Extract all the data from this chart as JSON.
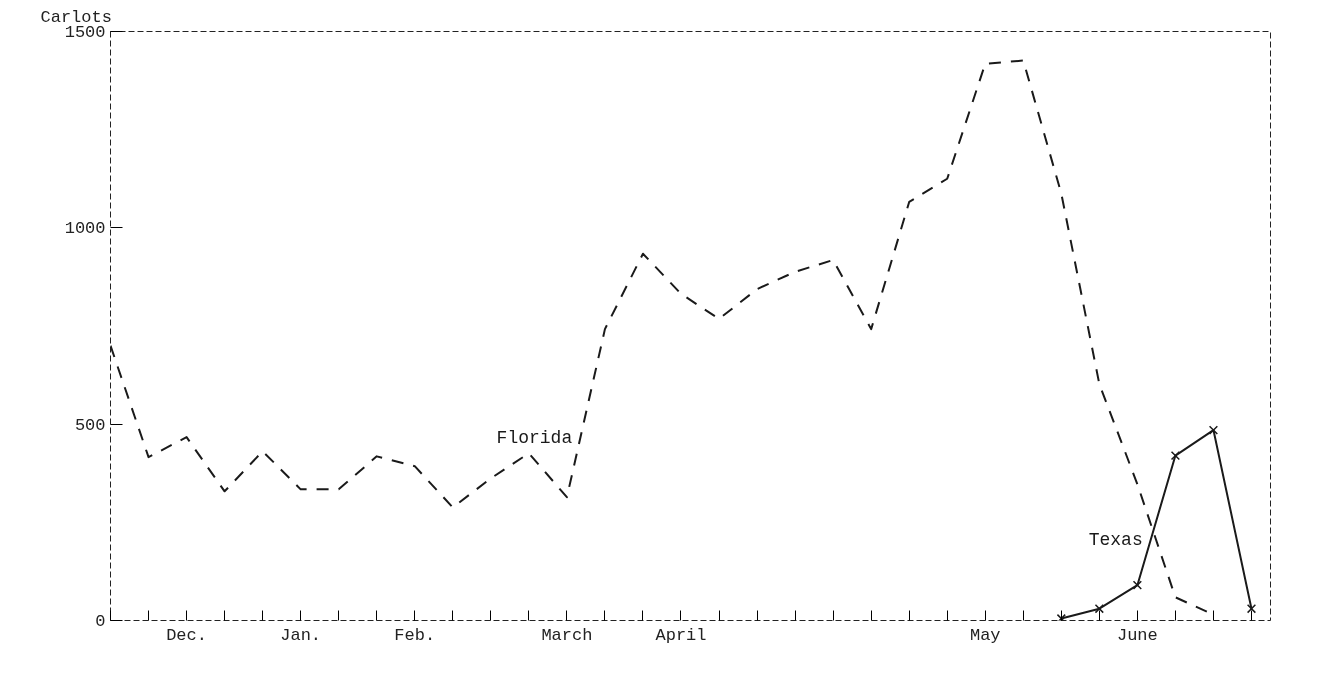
{
  "chart_data": {
    "type": "line",
    "ylabel": "Carlots",
    "categories": [
      null,
      null,
      "Dec.",
      null,
      null,
      "Jan.",
      null,
      null,
      "Feb.",
      null,
      null,
      null,
      "March",
      null,
      null,
      "April",
      null,
      null,
      null,
      null,
      null,
      null,
      null,
      "May",
      null,
      null,
      null,
      "June",
      null,
      null,
      null
    ],
    "series": [
      {
        "name": "Florida",
        "color": "#1a1a1a",
        "line_style": "dashed",
        "marker": "none",
        "values": [
          700,
          416,
          467,
          329,
          431,
          334,
          334,
          418,
          393,
          288,
          362,
          426,
          314,
          742,
          934,
          832,
          768,
          844,
          888,
          918,
          742,
          1066,
          1125,
          1418,
          1426,
          1087,
          602,
          347,
          59,
          15,
          null
        ]
      },
      {
        "name": "Texas",
        "color": "#1a1a1a",
        "line_style": "solid",
        "marker": "cross",
        "values": [
          null,
          null,
          null,
          null,
          null,
          null,
          null,
          null,
          null,
          null,
          null,
          null,
          null,
          null,
          null,
          null,
          null,
          null,
          null,
          null,
          null,
          null,
          null,
          null,
          null,
          5,
          30,
          90,
          420,
          485,
          30
        ]
      }
    ],
    "ylim": [
      0,
      1500
    ],
    "yticks": [
      0,
      500,
      1000,
      1500
    ],
    "grid": false,
    "legend": false
  }
}
